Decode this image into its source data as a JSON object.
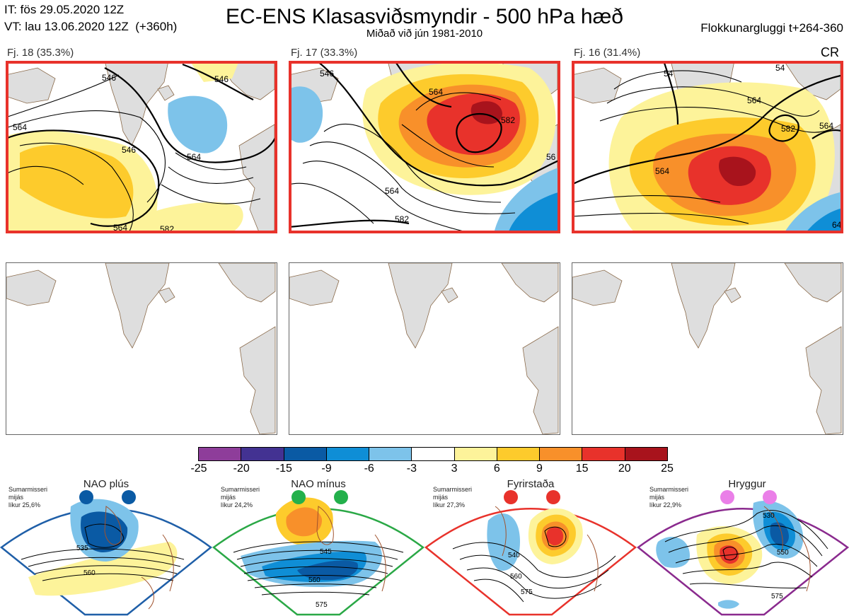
{
  "header": {
    "issue_time": "IT: fös 29.05.2020 12Z",
    "valid_time": "VT: lau 13.06.2020 12Z  (+360h)",
    "title": "EC-ENS Klasasviðsmyndir - 500 hPa hæð",
    "subtitle": "Miðað við jún 1981-2010",
    "window": "Flokkunargluggi t+264-360",
    "corner_tag": "CR"
  },
  "panels": [
    {
      "label": "Fj. 18 (35.3%)",
      "contour_labels": [
        "546",
        "546",
        "564",
        "546",
        "564",
        "564",
        "582"
      ]
    },
    {
      "label": "Fj. 17 (33.3%)",
      "contour_labels": [
        "546",
        "564",
        "582",
        "564",
        "56",
        "582"
      ]
    },
    {
      "label": "Fj. 16 (31.4%)",
      "contour_labels": [
        "54",
        "54",
        "564",
        "582",
        "564",
        "564",
        "64"
      ]
    }
  ],
  "colorbar": {
    "ticks": [
      "-25",
      "-20",
      "-15",
      "-9",
      "-6",
      "-3",
      "3",
      "6",
      "9",
      "15",
      "20",
      "25"
    ],
    "colors": [
      "#8e3d9a",
      "#433292",
      "#0a5aa4",
      "#0f8ed6",
      "#7dc3ea",
      "#ffffff",
      "#fdf39a",
      "#fdcb2c",
      "#f8902a",
      "#e8322b",
      "#a8131c"
    ]
  },
  "regimes": [
    {
      "name": "NAO plús",
      "season": "Sumarmisseri",
      "method": "mijás",
      "probability": "líkur 25,6%",
      "dot_color": "#0a5aa4",
      "frame_color": "#1f5fa8",
      "contour_labels": [
        "535",
        "560"
      ]
    },
    {
      "name": "NAO mínus",
      "season": "Sumarmisseri",
      "method": "mijás",
      "probability": "líkur 24,2%",
      "dot_color": "#23b04b",
      "frame_color": "#2aa846",
      "contour_labels": [
        "545",
        "560",
        "575"
      ]
    },
    {
      "name": "Fyrirstaða",
      "season": "Sumarmisseri",
      "method": "mijás",
      "probability": "líkur 27,3%",
      "dot_color": "#e8322b",
      "frame_color": "#e8322b",
      "contour_labels": [
        "540",
        "560",
        "575"
      ]
    },
    {
      "name": "Hryggur",
      "season": "Sumarmisseri",
      "method": "mijás",
      "probability": "líkur 22,9%",
      "dot_color": "#ea7fe8",
      "frame_color": "#8a2a8e",
      "contour_labels": [
        "530",
        "550",
        "575"
      ]
    }
  ]
}
